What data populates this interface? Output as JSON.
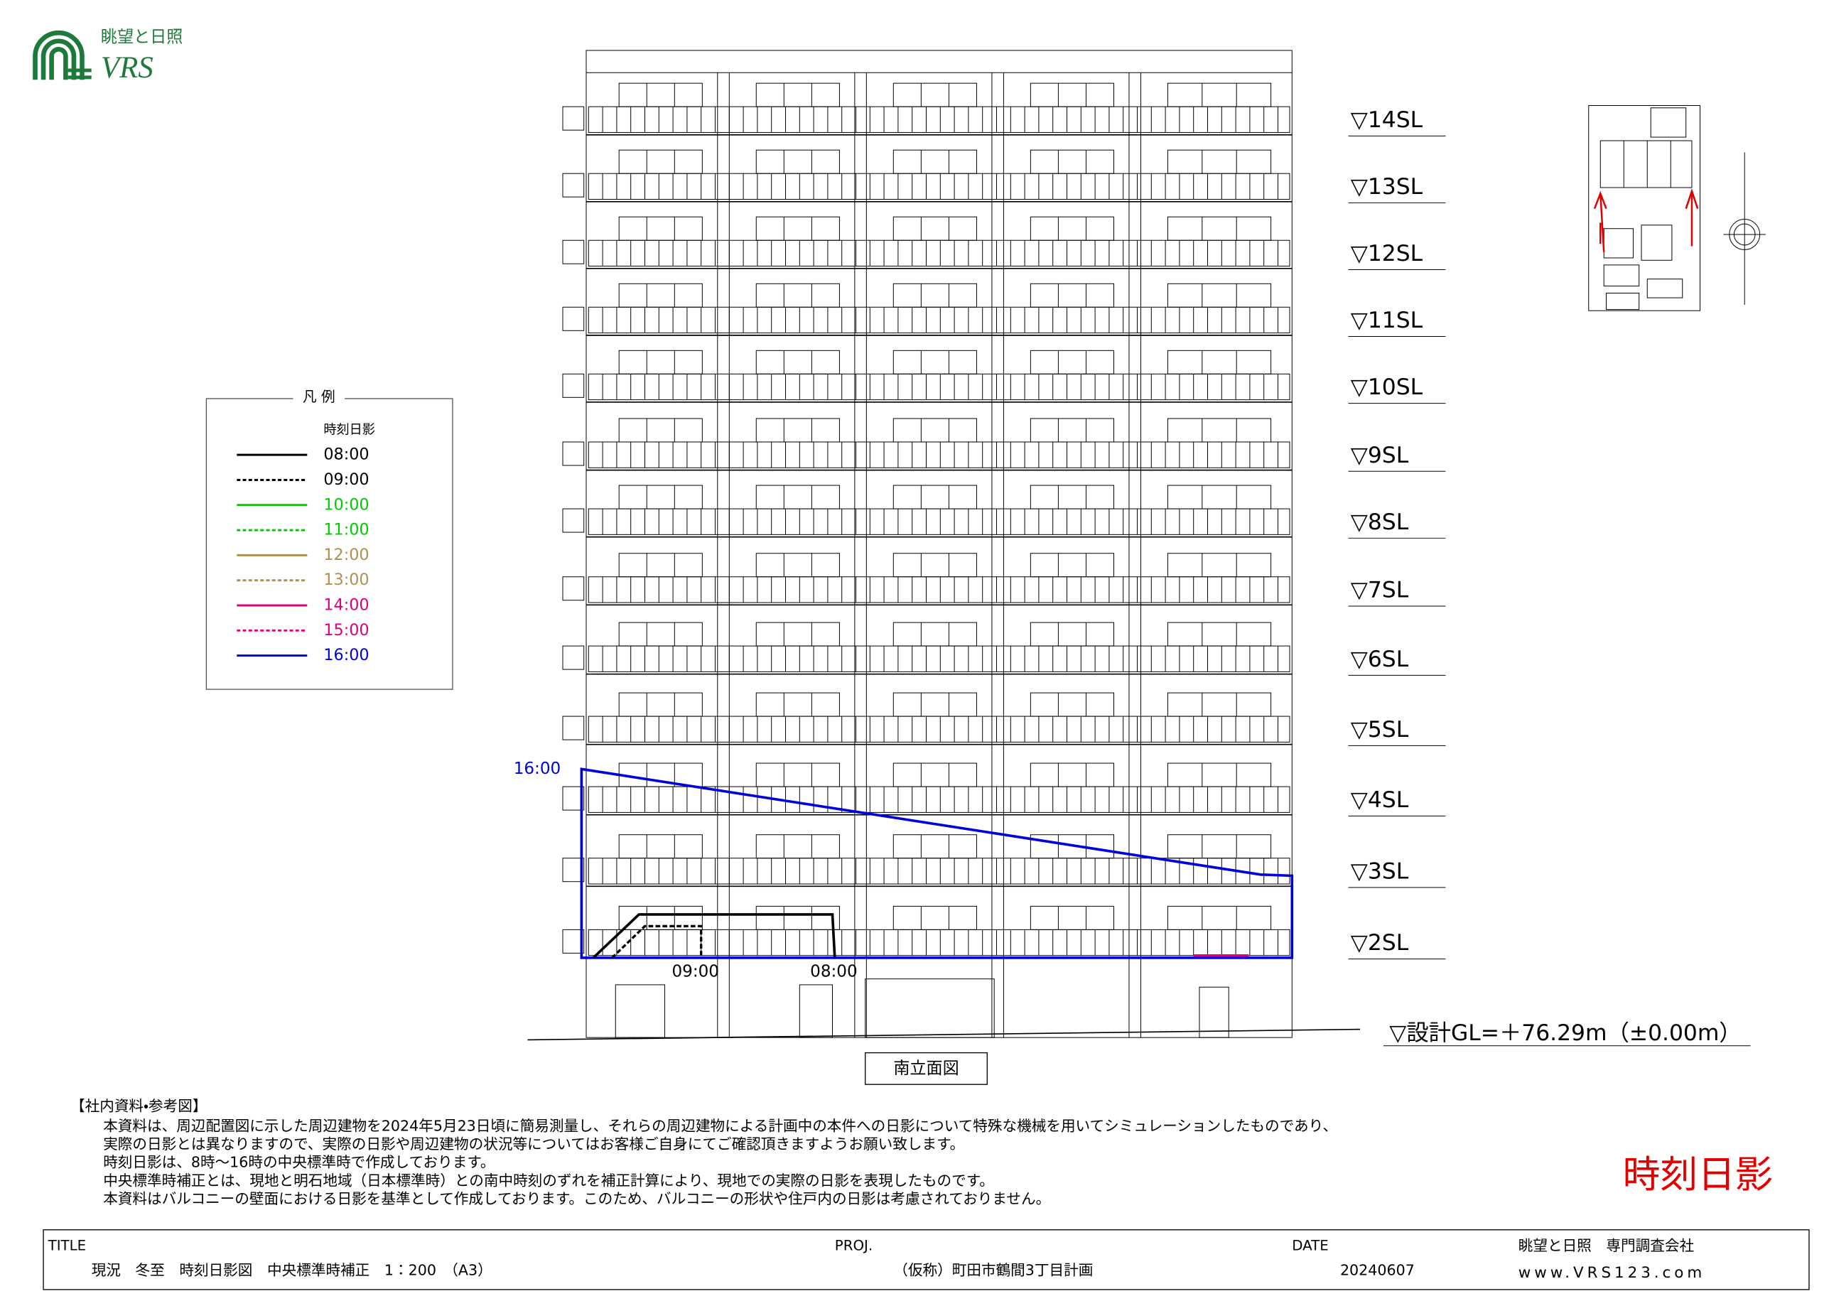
{
  "logo": {
    "jp": "眺望と日照",
    "en": "VRS"
  },
  "legend": {
    "heading": "凡 例",
    "subheading": "時刻日影",
    "items": [
      {
        "label": "08:00",
        "color": "#000000",
        "dashed": false
      },
      {
        "label": "09:00",
        "color": "#000000",
        "dashed": true
      },
      {
        "label": "10:00",
        "color": "#00cc00",
        "dashed": false
      },
      {
        "label": "11:00",
        "color": "#00cc00",
        "dashed": true
      },
      {
        "label": "12:00",
        "color": "#b09050",
        "dashed": false
      },
      {
        "label": "13:00",
        "color": "#b09050",
        "dashed": true
      },
      {
        "label": "14:00",
        "color": "#e0007a",
        "dashed": false
      },
      {
        "label": "15:00",
        "color": "#e0007a",
        "dashed": true
      },
      {
        "label": "16:00",
        "color": "#0000dd",
        "dashed": false
      }
    ]
  },
  "levels": [
    "▽14SL",
    "▽13SL",
    "▽12SL",
    "▽11SL",
    "▽10SL",
    "▽9SL",
    "▽8SL",
    "▽7SL",
    "▽6SL",
    "▽5SL",
    "▽4SL",
    "▽3SL",
    "▽2SL"
  ],
  "ground_level": "▽設計GL=＋76.29m（±0.00m）",
  "shadow_labels": {
    "blue": "16:00",
    "dashed": "09:00",
    "solid": "08:00"
  },
  "caption": "南立面図",
  "notes": {
    "heading": "【社内資料・参考図】",
    "lines": [
      "本資料は、周辺配置図に示した周辺建物を2024年5月23日頃に簡易測量し、それらの周辺建物による計画中の本件への日影について特殊な機械を用いてシミュレーションしたものであり、",
      "実際の日影とは異なりますので、実際の日影や周辺建物の状況等についてはお客様ご自身にてご確認頂きますようお願い致します。",
      "時刻日影は、8時～16時の中央標準時で作成しております。",
      "中央標準時補正とは、現地と明石地域（日本標準時）との南中時刻のずれを補正計算により、現地での実際の日影を表現したものです。",
      "本資料はバルコニーの壁面における日影を基準として作成しております。このため、バルコニーの形状や住戸内の日影は考慮されておりません。"
    ]
  },
  "stamp": "時刻日影",
  "title_block": {
    "title_label": "TITLE",
    "title": "現況　冬至　時刻日影図　中央標準時補正　1：200　（A3）",
    "proj_label": "PROJ.",
    "proj": "（仮称）町田市鶴間3丁目計画",
    "date_label": "DATE",
    "date": "20240607",
    "company": "眺望と日照　専門調査会社",
    "url": "www.VRS123.com"
  }
}
